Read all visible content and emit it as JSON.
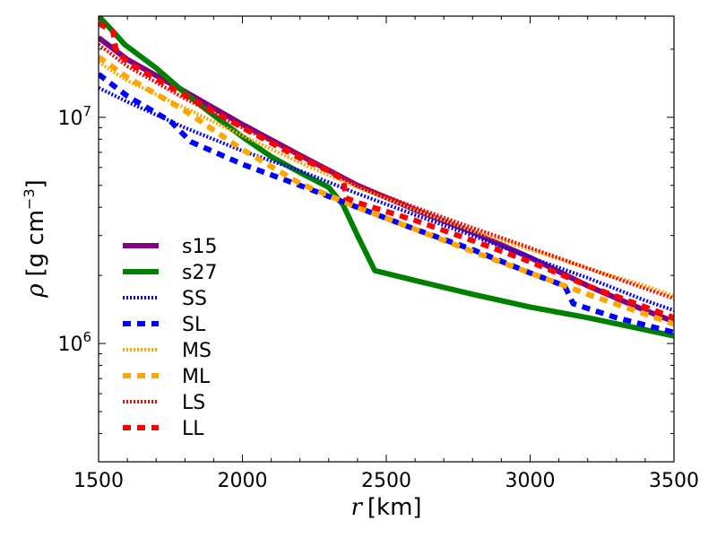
{
  "chart_data": {
    "type": "line",
    "title": "",
    "xlabel": {
      "symbol": "r",
      "unit": "[km]"
    },
    "ylabel": {
      "symbol": "ρ",
      "unit_prefix": "[g cm",
      "unit_exp": "−3",
      "unit_suffix": "]"
    },
    "x_scale": "linear",
    "y_scale": "log",
    "xlim": [
      1500,
      3500
    ],
    "ylim": [
      300000,
      28000000
    ],
    "grid": false,
    "legend_position": "lower-left",
    "x_ticks": [
      {
        "value": 1500,
        "label": "1500"
      },
      {
        "value": 2000,
        "label": "2000"
      },
      {
        "value": 2500,
        "label": "2500"
      },
      {
        "value": 3000,
        "label": "3000"
      },
      {
        "value": 3500,
        "label": "3500"
      }
    ],
    "y_major_ticks": [
      {
        "value": 1000000,
        "base": "10",
        "exp": "6"
      },
      {
        "value": 10000000,
        "base": "10",
        "exp": "7"
      }
    ],
    "series": [
      {
        "name": "s15",
        "color": "#800080",
        "style": "solid",
        "width": 6,
        "x": [
          1500,
          1600,
          1800,
          2000,
          2200,
          2400,
          2600,
          2800,
          3000,
          3200,
          3400,
          3500
        ],
        "y": [
          22500000,
          18000000,
          13000000,
          9300000,
          6800000,
          5000000,
          3900000,
          3100000,
          2400000,
          1800000,
          1400000,
          1250000
        ]
      },
      {
        "name": "s27",
        "color": "#008000",
        "style": "solid",
        "width": 6,
        "x": [
          1500,
          1550,
          1590,
          1700,
          1800,
          1900,
          2000,
          2100,
          2200,
          2300,
          2350,
          2400,
          2460,
          2600,
          2800,
          3000,
          3200,
          3400,
          3500
        ],
        "y": [
          28000000,
          24000000,
          21000000,
          16500000,
          12800000,
          10200000,
          8200000,
          6700000,
          5700000,
          4900000,
          4100000,
          3000000,
          2100000,
          1900000,
          1650000,
          1450000,
          1300000,
          1150000,
          1080000
        ]
      },
      {
        "name": "SS",
        "color": "#0000ff",
        "style": "dotted",
        "width": 4,
        "x": [
          1500,
          1600,
          1800,
          2000,
          2200,
          2400,
          2600,
          2800,
          3000,
          3200,
          3400,
          3500
        ],
        "y": [
          13500000,
          11700000,
          9000000,
          7100000,
          5800000,
          4600000,
          3700000,
          3000000,
          2400000,
          1950000,
          1550000,
          1400000
        ]
      },
      {
        "name": "SL",
        "color": "#0000ff",
        "style": "dashed",
        "width": 6,
        "x": [
          1500,
          1600,
          1750,
          1820,
          2000,
          2200,
          2400,
          2600,
          2800,
          3000,
          3120,
          3150,
          3300,
          3500
        ],
        "y": [
          15500000,
          12400000,
          9600000,
          7800000,
          6200000,
          5000000,
          4000000,
          3200000,
          2600000,
          2050000,
          1800000,
          1500000,
          1300000,
          1120000
        ]
      },
      {
        "name": "MS",
        "color": "#ffa500",
        "style": "dotted",
        "width": 4,
        "x": [
          1500,
          1600,
          1800,
          2000,
          2200,
          2400,
          2600,
          2800,
          3000,
          3200,
          3400,
          3500
        ],
        "y": [
          17500000,
          14500000,
          11000000,
          8300000,
          6300000,
          4900000,
          3900000,
          3150000,
          2600000,
          2150000,
          1800000,
          1620000
        ]
      },
      {
        "name": "ML",
        "color": "#ffa500",
        "style": "dashed",
        "width": 6,
        "x": [
          1500,
          1600,
          1800,
          2000,
          2200,
          2400,
          2600,
          2800,
          3000,
          3200,
          3400,
          3500
        ],
        "y": [
          18500000,
          15000000,
          10700000,
          7200000,
          5100000,
          4000000,
          3200000,
          2550000,
          2050000,
          1650000,
          1350000,
          1220000
        ]
      },
      {
        "name": "LS",
        "color": "#ff0000",
        "style": "dotted",
        "width": 4,
        "x": [
          1500,
          1600,
          1800,
          2000,
          2200,
          2400,
          2600,
          2800,
          3000,
          3200,
          3400,
          3500
        ],
        "y": [
          21000000,
          16800000,
          12100000,
          9000000,
          6800000,
          5000000,
          4000000,
          3250000,
          2650000,
          2150000,
          1750000,
          1580000
        ]
      },
      {
        "name": "LL",
        "color": "#ff0000",
        "style": "dashed",
        "width": 6,
        "x": [
          1500,
          1550,
          1560,
          1600,
          1800,
          2000,
          2200,
          2300,
          2350,
          2360,
          2400,
          2600,
          2800,
          3000,
          3200,
          3400,
          3500
        ],
        "y": [
          26000000,
          24000000,
          20000000,
          17500000,
          12500000,
          9000000,
          6600000,
          5800000,
          5300000,
          4400000,
          4200000,
          3500000,
          2850000,
          2300000,
          1800000,
          1450000,
          1300000
        ]
      }
    ]
  }
}
